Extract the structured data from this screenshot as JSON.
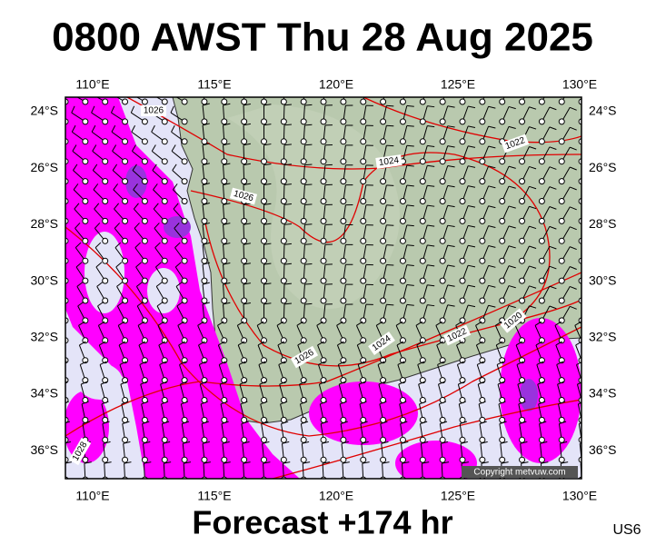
{
  "title": "0800 AWST Thu 28 Aug 2025",
  "map": {
    "lon_labels": [
      "110°E",
      "115°E",
      "120°E",
      "125°E",
      "130°E"
    ],
    "lat_labels": [
      "24°S",
      "26°S",
      "28°S",
      "30°S",
      "32°S",
      "34°S",
      "36°S"
    ],
    "isobar_labels": [
      "1026",
      "1022",
      "1024",
      "1026",
      "1020",
      "1022",
      "1024",
      "1026",
      "1028"
    ],
    "copyright": "Copyright metvuw.com"
  },
  "footer": {
    "forecast": "Forecast +174 hr",
    "code": "US6"
  }
}
